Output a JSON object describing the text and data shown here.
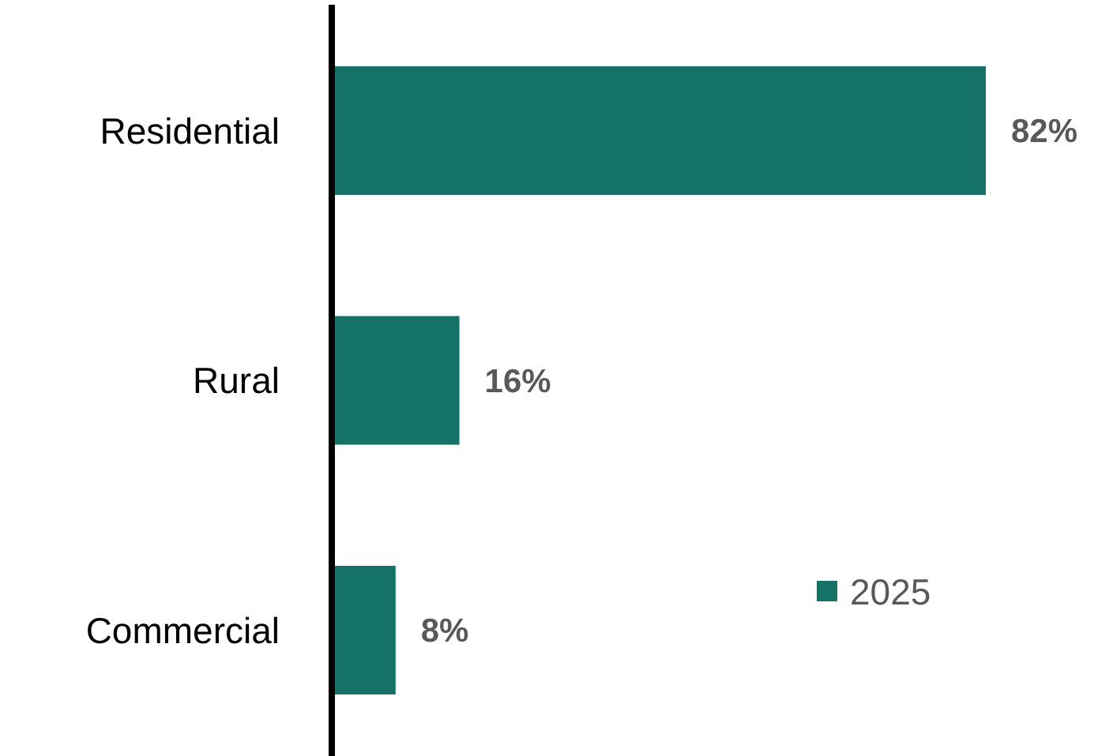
{
  "chart_data": {
    "type": "bar",
    "orientation": "horizontal",
    "categories": [
      "Residential",
      "Rural",
      "Commercial"
    ],
    "series": [
      {
        "name": "2025",
        "color": "#147266",
        "values": [
          82,
          16,
          8
        ],
        "value_labels": [
          "82%",
          "16%",
          "8%"
        ]
      }
    ],
    "legend": "right"
  }
}
